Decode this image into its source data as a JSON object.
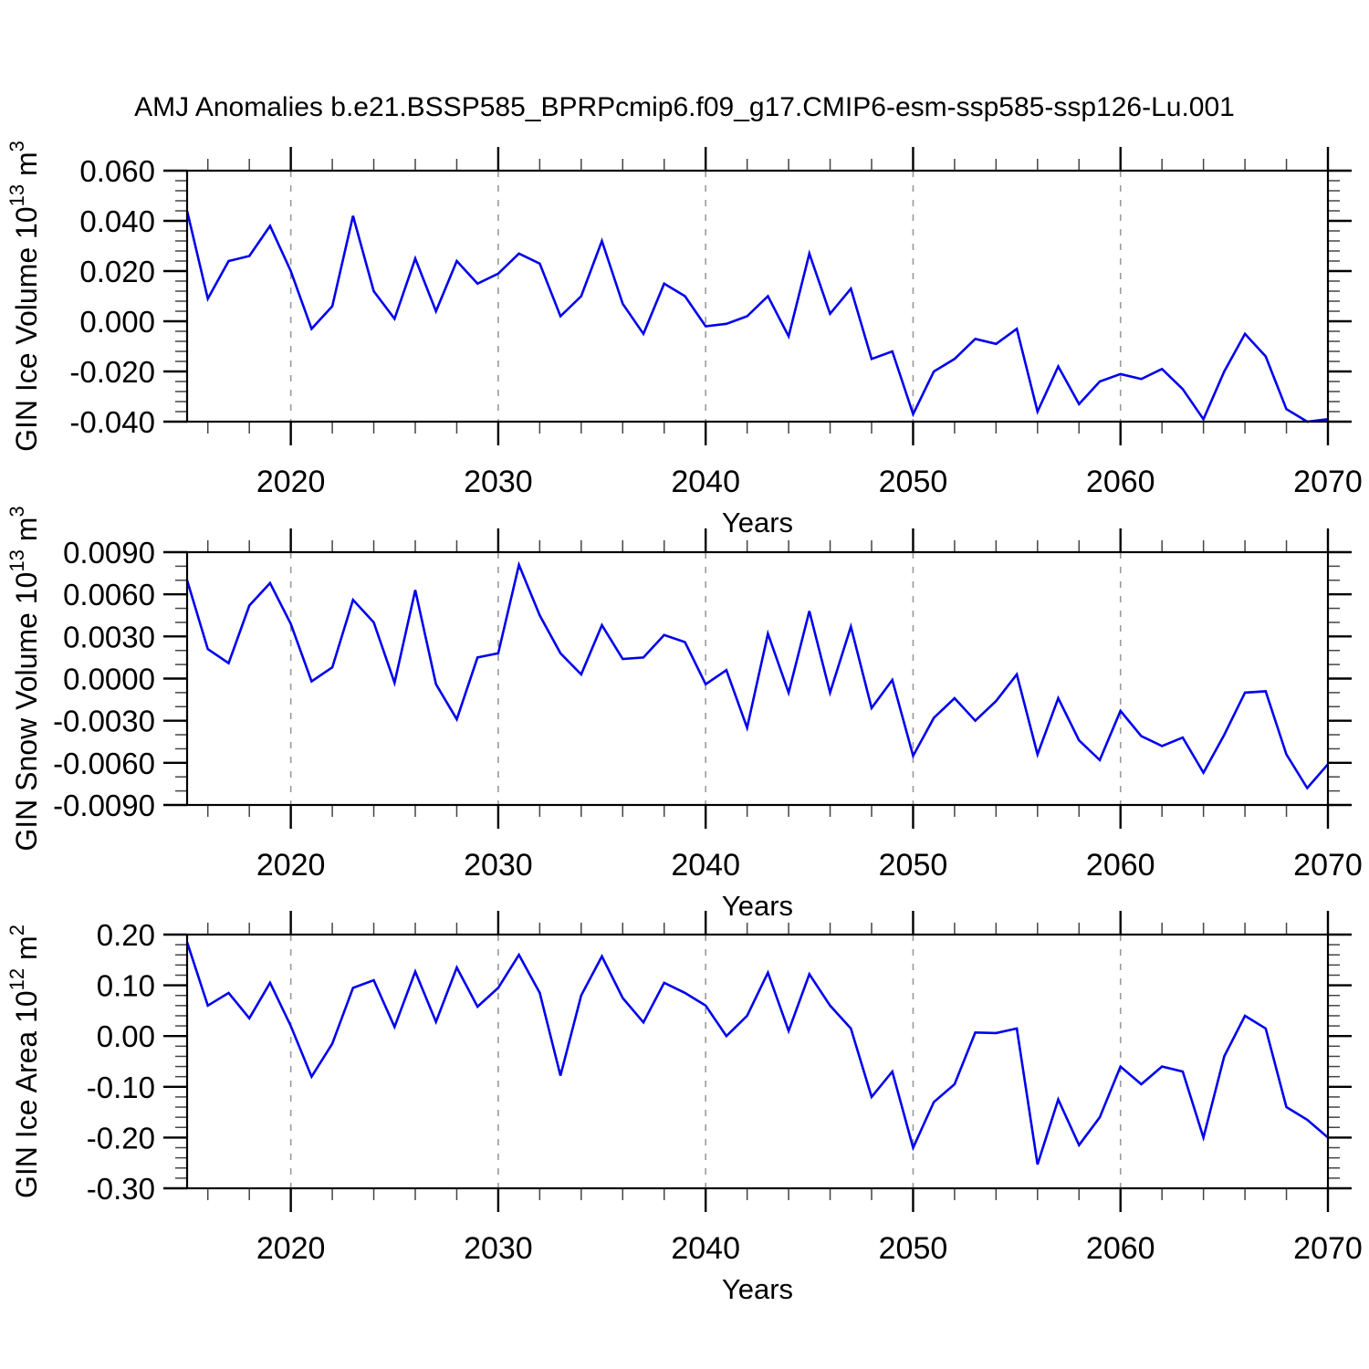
{
  "title": "AMJ Anomalies b.e21.BSSP585_BPRPcmip6.f09_g17.CMIP6-esm-ssp585-ssp126-Lu.001",
  "colors": {
    "line": "#0000ee",
    "frame": "#000000",
    "grid": "#9a9a9a",
    "minor_tick": "#444444",
    "text": "#000000"
  },
  "x_years": [
    2015,
    2016,
    2017,
    2018,
    2019,
    2020,
    2021,
    2022,
    2023,
    2024,
    2025,
    2026,
    2027,
    2028,
    2029,
    2030,
    2031,
    2032,
    2033,
    2034,
    2035,
    2036,
    2037,
    2038,
    2039,
    2040,
    2041,
    2042,
    2043,
    2044,
    2045,
    2046,
    2047,
    2048,
    2049,
    2050,
    2051,
    2052,
    2053,
    2054,
    2055,
    2056,
    2057,
    2058,
    2059,
    2060,
    2061,
    2062,
    2063,
    2064,
    2065,
    2066,
    2067,
    2068,
    2069,
    2070
  ],
  "chart_data": [
    {
      "type": "line",
      "name": "gin-ice-volume",
      "ylabel": {
        "prefix": "GIN Ice Volume 10",
        "sup1": "13",
        "mid": " m",
        "sup2": "3"
      },
      "xlabel": "Years",
      "ylim": [
        -0.04,
        0.06
      ],
      "ytick_values": [
        0.06,
        0.04,
        0.02,
        0.0,
        -0.02,
        -0.04
      ],
      "ytick_labels": [
        "0.060",
        "0.040",
        "0.020",
        "0.000",
        "-0.020",
        "-0.040"
      ],
      "yminor_step": 0.004,
      "xlim": [
        2015,
        2070
      ],
      "xticks": [
        2020,
        2030,
        2040,
        2050,
        2060,
        2070
      ],
      "xminor_step": 2,
      "grid_years": [
        2020,
        2030,
        2040,
        2050,
        2060
      ],
      "legend": "none",
      "grid": "vertical-dashed",
      "values": [
        0.044,
        0.009,
        0.024,
        0.026,
        0.038,
        0.02,
        -0.003,
        0.006,
        0.042,
        0.012,
        0.001,
        0.025,
        0.004,
        0.024,
        0.015,
        0.019,
        0.027,
        0.023,
        0.002,
        0.01,
        0.032,
        0.007,
        -0.005,
        0.015,
        0.01,
        -0.002,
        -0.001,
        0.002,
        0.01,
        -0.006,
        0.027,
        0.003,
        0.013,
        -0.015,
        -0.012,
        -0.037,
        -0.02,
        -0.015,
        -0.007,
        -0.009,
        -0.003,
        -0.036,
        -0.018,
        -0.033,
        -0.024,
        -0.021,
        -0.023,
        -0.019,
        -0.027,
        -0.039,
        -0.02,
        -0.005,
        -0.014,
        -0.035,
        -0.04,
        -0.039
      ]
    },
    {
      "type": "line",
      "name": "gin-snow-volume",
      "ylabel": {
        "prefix": "GIN Snow Volume 10",
        "sup1": "13",
        "mid": " m",
        "sup2": "3"
      },
      "xlabel": "Years",
      "ylim": [
        -0.009,
        0.009
      ],
      "ytick_values": [
        0.009,
        0.006,
        0.003,
        0.0,
        -0.003,
        -0.006,
        -0.009
      ],
      "ytick_labels": [
        "0.0090",
        "0.0060",
        "0.0030",
        "0.0000",
        "-0.0030",
        "-0.0060",
        "-0.0090"
      ],
      "yminor_step": 0.001,
      "xlim": [
        2015,
        2070
      ],
      "xticks": [
        2020,
        2030,
        2040,
        2050,
        2060,
        2070
      ],
      "xminor_step": 2,
      "grid_years": [
        2020,
        2030,
        2040,
        2050,
        2060
      ],
      "legend": "none",
      "grid": "vertical-dashed",
      "values": [
        0.007,
        0.0021,
        0.0011,
        0.0052,
        0.0068,
        0.0039,
        -0.0002,
        0.0008,
        0.0056,
        0.004,
        -0.0003,
        0.0063,
        -0.0004,
        -0.0029,
        0.0015,
        0.0018,
        0.0081,
        0.0045,
        0.0018,
        0.0003,
        0.0038,
        0.0014,
        0.0015,
        0.0031,
        0.0026,
        -0.0004,
        0.0006,
        -0.0035,
        0.0032,
        -0.001,
        0.0048,
        -0.001,
        0.0037,
        -0.0021,
        -0.0001,
        -0.0055,
        -0.0028,
        -0.0014,
        -0.003,
        -0.0016,
        0.0003,
        -0.0054,
        -0.0014,
        -0.0044,
        -0.0058,
        -0.0023,
        -0.0041,
        -0.0048,
        -0.0042,
        -0.0067,
        -0.004,
        -0.001,
        -0.0009,
        -0.0054,
        -0.0078,
        -0.0061
      ]
    },
    {
      "type": "line",
      "name": "gin-ice-area",
      "ylabel": {
        "prefix": "GIN Ice Area 10",
        "sup1": "12",
        "mid": " m",
        "sup2": "2"
      },
      "xlabel": "Years",
      "ylim": [
        -0.3,
        0.2
      ],
      "ytick_values": [
        0.2,
        0.1,
        0.0,
        -0.1,
        -0.2,
        -0.3
      ],
      "ytick_labels": [
        "0.20",
        "0.10",
        "0.00",
        "-0.10",
        "-0.20",
        "-0.30"
      ],
      "yminor_step": 0.02,
      "xlim": [
        2015,
        2070
      ],
      "xticks": [
        2020,
        2030,
        2040,
        2050,
        2060,
        2070
      ],
      "xminor_step": 2,
      "grid_years": [
        2020,
        2030,
        2040,
        2050,
        2060
      ],
      "legend": "none",
      "grid": "vertical-dashed",
      "values": [
        0.185,
        0.06,
        0.085,
        0.035,
        0.105,
        0.02,
        -0.08,
        -0.015,
        0.095,
        0.11,
        0.018,
        0.127,
        0.028,
        0.135,
        0.058,
        0.095,
        0.16,
        0.085,
        -0.078,
        0.08,
        0.157,
        0.075,
        0.027,
        0.105,
        0.085,
        0.06,
        0.0,
        0.04,
        0.125,
        0.01,
        0.122,
        0.06,
        0.015,
        -0.12,
        -0.07,
        -0.22,
        -0.13,
        -0.095,
        0.007,
        0.006,
        0.015,
        -0.253,
        -0.125,
        -0.215,
        -0.16,
        -0.06,
        -0.095,
        -0.06,
        -0.07,
        -0.2,
        -0.04,
        0.04,
        0.015,
        -0.14,
        -0.165,
        -0.2
      ]
    }
  ]
}
